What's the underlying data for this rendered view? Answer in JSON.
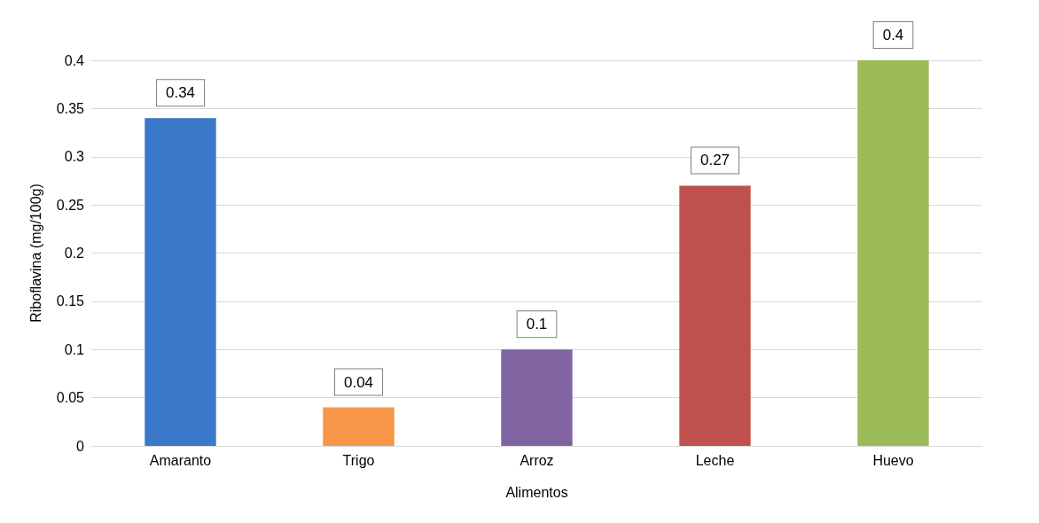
{
  "chart_data": {
    "type": "bar",
    "xlabel": "Alimentos",
    "ylabel": "Riboflavina (mg/100g)",
    "categories": [
      "Amaranto",
      "Trigo",
      "Arroz",
      "Leche",
      "Huevo"
    ],
    "values": [
      0.34,
      0.04,
      0.1,
      0.27,
      0.4
    ],
    "colors": [
      "#3a78c9",
      "#f79646",
      "#8064a2",
      "#c0504d",
      "#9bbb59"
    ],
    "ylim": [
      0,
      0.4
    ],
    "yticks": [
      0,
      0.05,
      0.1,
      0.15,
      0.2,
      0.25,
      0.3,
      0.35,
      0.4
    ],
    "grid": true,
    "data_labels": true
  }
}
